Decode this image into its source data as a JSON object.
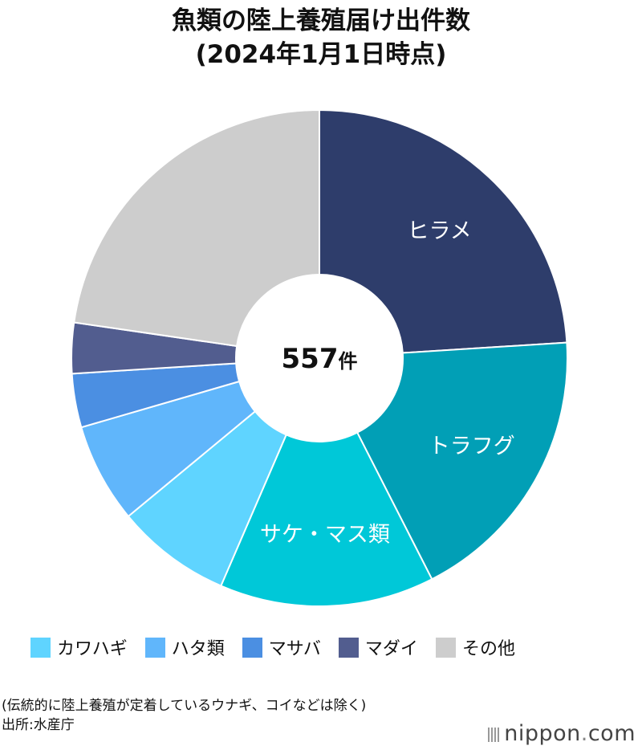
{
  "title_line1": "魚類の陸上養殖届け出件数",
  "title_line2": "(2024年1月1日時点)",
  "center_value": "557",
  "center_unit": "件",
  "chart_data": {
    "type": "pie",
    "total": 557,
    "slices": [
      {
        "label": "ヒラメ",
        "value": 24,
        "color": "#2e3d6b",
        "text_color": "#ffffff",
        "show_label": true
      },
      {
        "label": "トラフグ",
        "value": 18.5,
        "color": "#019fb6",
        "text_color": "#ffffff",
        "show_label": true
      },
      {
        "label": "サケ・マス類",
        "value": 14,
        "color": "#00c8d8",
        "text_color": "#ffffff",
        "show_label": true
      },
      {
        "label": "カワハギ",
        "value": 7.5,
        "color": "#5fd4ff",
        "show_label": false
      },
      {
        "label": "ハタ類",
        "value": 6.5,
        "color": "#60b6fb",
        "show_label": false
      },
      {
        "label": "マサバ",
        "value": 3.5,
        "color": "#4b8fe2",
        "show_label": false
      },
      {
        "label": "マダイ",
        "value": 3.3,
        "color": "#525d8f",
        "show_label": false
      },
      {
        "label": "その他",
        "value": 22.7,
        "color": "#cdcdcd",
        "show_label": false
      }
    ]
  },
  "legend": [
    {
      "label": "カワハギ",
      "color": "#5fd4ff"
    },
    {
      "label": "ハタ類",
      "color": "#60b6fb"
    },
    {
      "label": "マサバ",
      "color": "#4b8fe2"
    },
    {
      "label": "マダイ",
      "color": "#525d8f"
    },
    {
      "label": "その他",
      "color": "#cdcdcd"
    }
  ],
  "note_line1": "(伝統的に陸上養殖が定着しているウナギ、コイなどは除く)",
  "note_line2": "出所:水産庁",
  "brand": {
    "name": "nippon",
    "dot": ".",
    "suffix": "com"
  }
}
